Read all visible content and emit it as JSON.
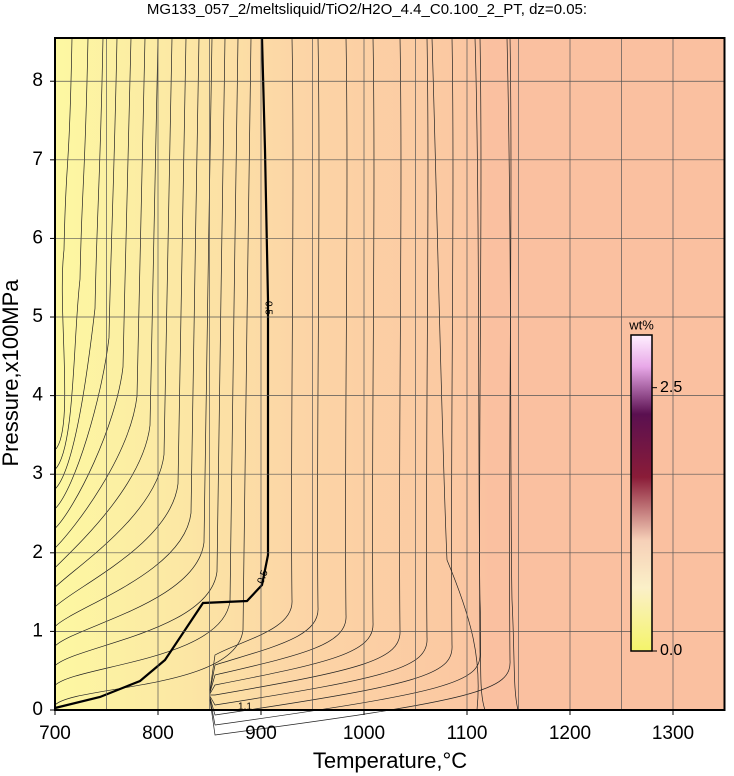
{
  "chart_data": {
    "type": "contour",
    "title": "MG133_057_2/meltsliquid/TiO2/H2O_4.4_C0.100_2_PT, dz=0.05:",
    "x_label": "Temperature,°C",
    "y_label": "Pressure,x100MPa",
    "xlim": [
      700,
      1350
    ],
    "ylim": [
      0,
      8.55
    ],
    "xticks": [
      700,
      800,
      900,
      1000,
      1100,
      1200,
      1300
    ],
    "xminor": [
      750,
      850,
      950,
      1050,
      1150,
      1250
    ],
    "yticks": [
      0,
      1,
      2,
      3,
      4,
      5,
      6,
      7,
      8
    ],
    "grid": true,
    "contour_labels": [
      0.5,
      0.5,
      1.1
    ],
    "colorbar": {
      "title": "wt%",
      "lim": [
        0,
        3.0
      ],
      "ticks": [
        {
          "value": 0,
          "label": "0.0"
        },
        {
          "value": 2.5,
          "label": "2.5"
        }
      ]
    }
  }
}
